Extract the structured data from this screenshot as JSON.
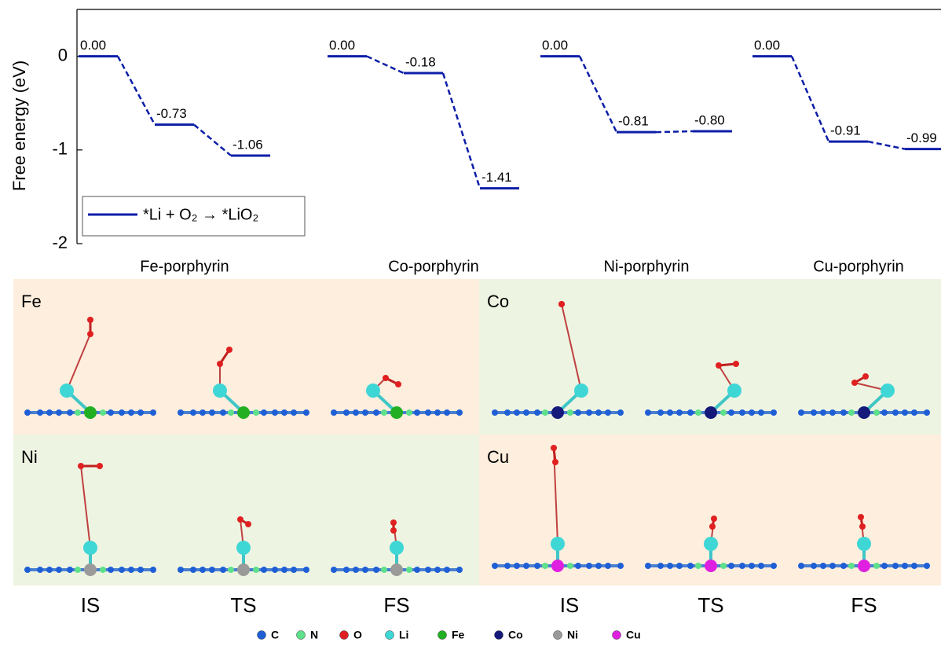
{
  "chart_data": {
    "type": "energy",
    "ylabel": "Free energy (eV)",
    "categories": [
      "Fe-porphyrin",
      "Co-porphyrin",
      "Ni-porphyrin",
      "Cu-porphyrin"
    ],
    "series": [
      {
        "name": "*Li + O₂ → *LiO₂",
        "color": "#0d1ea8",
        "values": [
          [
            0,
            -0.73,
            -1.06
          ],
          [
            0,
            -0.18,
            -1.41
          ],
          [
            0,
            -0.81,
            -0.8
          ],
          [
            0,
            -0.91,
            -0.99
          ]
        ],
        "value_labels": [
          [
            "0.00",
            "-0.73",
            "-1.06"
          ],
          [
            "0.00",
            "-0.18",
            "-1.41"
          ],
          [
            "0.00",
            "-0.81",
            "-0.80"
          ],
          [
            "0.00",
            "-0.91",
            "-0.99"
          ]
        ]
      }
    ],
    "ylim": [
      -2,
      0.5
    ],
    "yticks": [
      -2,
      -1,
      0
    ],
    "legend": "lower-left"
  },
  "panels": [
    "Fe",
    "Co",
    "Ni",
    "Cu"
  ],
  "stage_labels": [
    "IS",
    "TS",
    "FS",
    "IS",
    "TS",
    "FS"
  ],
  "atom_legend": [
    {
      "label": "C",
      "color": "#1f5fd6"
    },
    {
      "label": "N",
      "color": "#5fe08a"
    },
    {
      "label": "O",
      "color": "#e02020"
    },
    {
      "label": "Li",
      "color": "#3fd6d6"
    },
    {
      "label": "Fe",
      "color": "#22b022"
    },
    {
      "label": "Co",
      "color": "#14197a"
    },
    {
      "label": "Ni",
      "color": "#9a9a9a"
    },
    {
      "label": "Cu",
      "color": "#e020e0"
    }
  ]
}
